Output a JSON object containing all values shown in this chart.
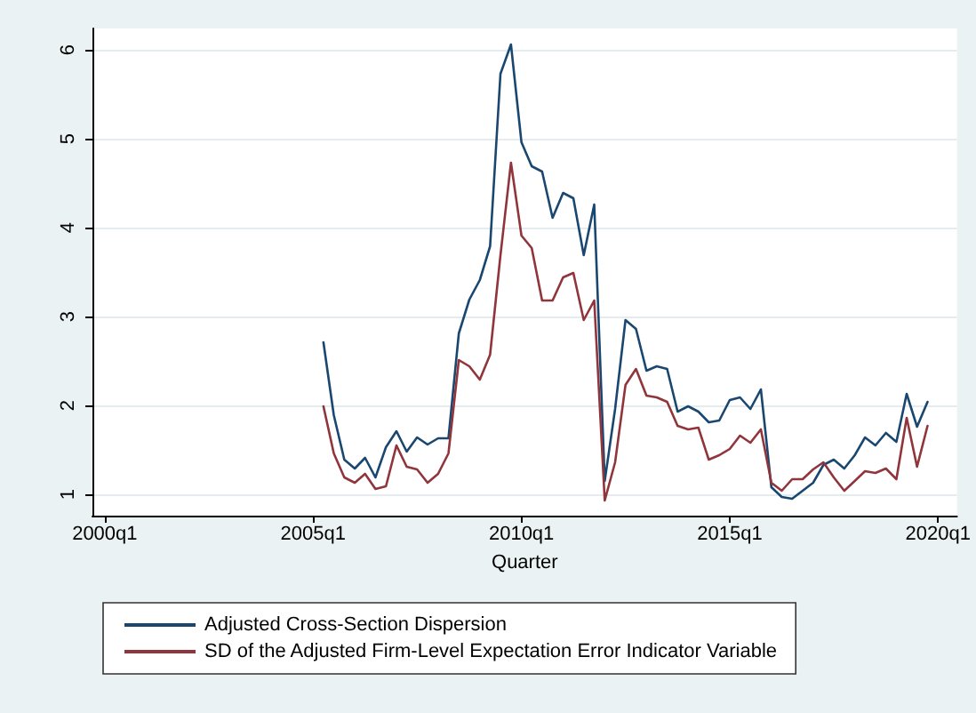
{
  "chart_data": {
    "type": "line",
    "xlabel": "Quarter",
    "x": [
      "2005-04",
      "2005-07",
      "2005-10",
      "2006-01",
      "2006-04",
      "2006-07",
      "2006-10",
      "2007-01",
      "2007-04",
      "2007-07",
      "2007-10",
      "2008-01",
      "2008-04",
      "2008-07",
      "2008-10",
      "2009-01",
      "2009-04",
      "2009-07",
      "2009-10",
      "2010-01",
      "2010-04",
      "2010-07",
      "2010-10",
      "2011-01",
      "2011-04",
      "2011-07",
      "2011-10",
      "2012-01",
      "2012-04",
      "2012-07",
      "2012-10",
      "2013-01",
      "2013-04",
      "2013-07",
      "2013-10",
      "2014-01",
      "2014-04",
      "2014-07",
      "2014-10",
      "2015-01",
      "2015-04",
      "2015-07",
      "2015-10",
      "2016-01",
      "2016-04",
      "2016-07",
      "2016-10",
      "2017-01",
      "2017-04",
      "2017-07",
      "2017-10",
      "2018-01",
      "2018-04",
      "2018-07",
      "2018-10",
      "2019-01",
      "2019-04",
      "2019-07",
      "2019-10"
    ],
    "series": [
      {
        "name": "Adjusted Cross-Section Dispersion",
        "color": "#1a476f",
        "values": [
          2.71,
          1.89,
          1.39,
          1.29,
          1.41,
          1.19,
          1.53,
          1.71,
          1.48,
          1.64,
          1.56,
          1.63,
          1.63,
          2.81,
          3.19,
          3.41,
          3.79,
          5.73,
          6.06,
          4.96,
          4.69,
          4.63,
          4.11,
          4.39,
          4.33,
          3.69,
          4.26,
          1.15,
          1.96,
          2.96,
          2.86,
          2.39,
          2.44,
          2.41,
          1.93,
          1.99,
          1.93,
          1.81,
          1.83,
          2.06,
          2.09,
          1.96,
          2.18,
          1.08,
          0.97,
          0.95,
          1.04,
          1.13,
          1.33,
          1.39,
          1.29,
          1.44,
          1.64,
          1.55,
          1.69,
          1.59,
          2.13,
          1.76,
          2.04
        ]
      },
      {
        "name": "SD of the Adjusted Firm-Level Expectation Error Indicator Variable",
        "color": "#90353b",
        "values": [
          1.99,
          1.46,
          1.19,
          1.13,
          1.23,
          1.06,
          1.09,
          1.55,
          1.31,
          1.28,
          1.13,
          1.23,
          1.46,
          2.51,
          2.44,
          2.29,
          2.57,
          3.69,
          4.73,
          3.91,
          3.77,
          3.18,
          3.18,
          3.44,
          3.49,
          2.96,
          3.18,
          0.93,
          1.36,
          2.23,
          2.41,
          2.11,
          2.09,
          2.04,
          1.77,
          1.73,
          1.75,
          1.39,
          1.44,
          1.51,
          1.66,
          1.58,
          1.73,
          1.13,
          1.04,
          1.17,
          1.17,
          1.28,
          1.36,
          1.19,
          1.04,
          1.15,
          1.26,
          1.24,
          1.29,
          1.17,
          1.86,
          1.31,
          1.77
        ]
      }
    ],
    "xlim": [
      "1999-09-15",
      "2020-06-15"
    ],
    "xticks": [
      {
        "value": "2000-01",
        "label": "2000q1"
      },
      {
        "value": "2005-01",
        "label": "2005q1"
      },
      {
        "value": "2010-01",
        "label": "2010q1"
      },
      {
        "value": "2015-01",
        "label": "2015q1"
      },
      {
        "value": "2020-01",
        "label": "2020q1"
      }
    ],
    "ylim": [
      0.76,
      6.24
    ],
    "yticks": [
      1,
      2,
      3,
      4,
      5,
      6
    ],
    "grid": "y",
    "legend": "bottom",
    "marker": "none",
    "line_style": "solid"
  }
}
